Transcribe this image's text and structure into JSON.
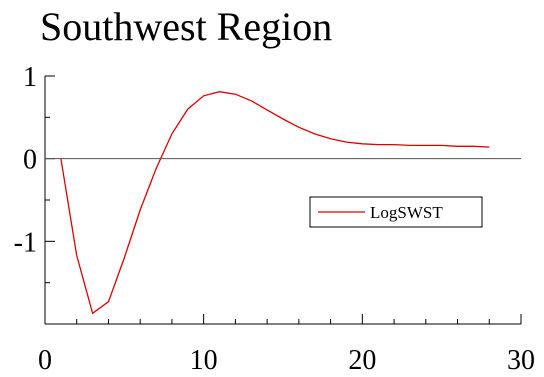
{
  "chart_data": {
    "type": "line",
    "title": "Southwest Region",
    "xlabel": "",
    "ylabel": "",
    "xlim": [
      0,
      30
    ],
    "ylim": [
      -2,
      1
    ],
    "x_ticks": [
      {
        "value": 0,
        "label": "0"
      },
      {
        "value": 10,
        "label": "10"
      },
      {
        "value": 20,
        "label": "20"
      },
      {
        "value": 30,
        "label": "30"
      }
    ],
    "y_ticks": [
      {
        "value": 1,
        "label": "1"
      },
      {
        "value": 0,
        "label": "0"
      },
      {
        "value": -1,
        "label": "-1"
      }
    ],
    "x_minor_step": 2,
    "y_minor_step": 0.5,
    "zero_line": true,
    "grid": false,
    "legend_position": "middle-right",
    "series": [
      {
        "name": "LogSWST",
        "color": "#e00000",
        "x": [
          1,
          2,
          3,
          4,
          5,
          6,
          7,
          8,
          9,
          10,
          11,
          12,
          13,
          14,
          15,
          16,
          17,
          18,
          19,
          20,
          21,
          22,
          23,
          24,
          25,
          26,
          27,
          28
        ],
        "y": [
          0.0,
          -1.17,
          -1.87,
          -1.73,
          -1.2,
          -0.62,
          -0.12,
          0.3,
          0.6,
          0.76,
          0.81,
          0.78,
          0.7,
          0.59,
          0.48,
          0.38,
          0.3,
          0.24,
          0.2,
          0.18,
          0.17,
          0.17,
          0.16,
          0.16,
          0.16,
          0.15,
          0.15,
          0.14
        ]
      }
    ]
  }
}
